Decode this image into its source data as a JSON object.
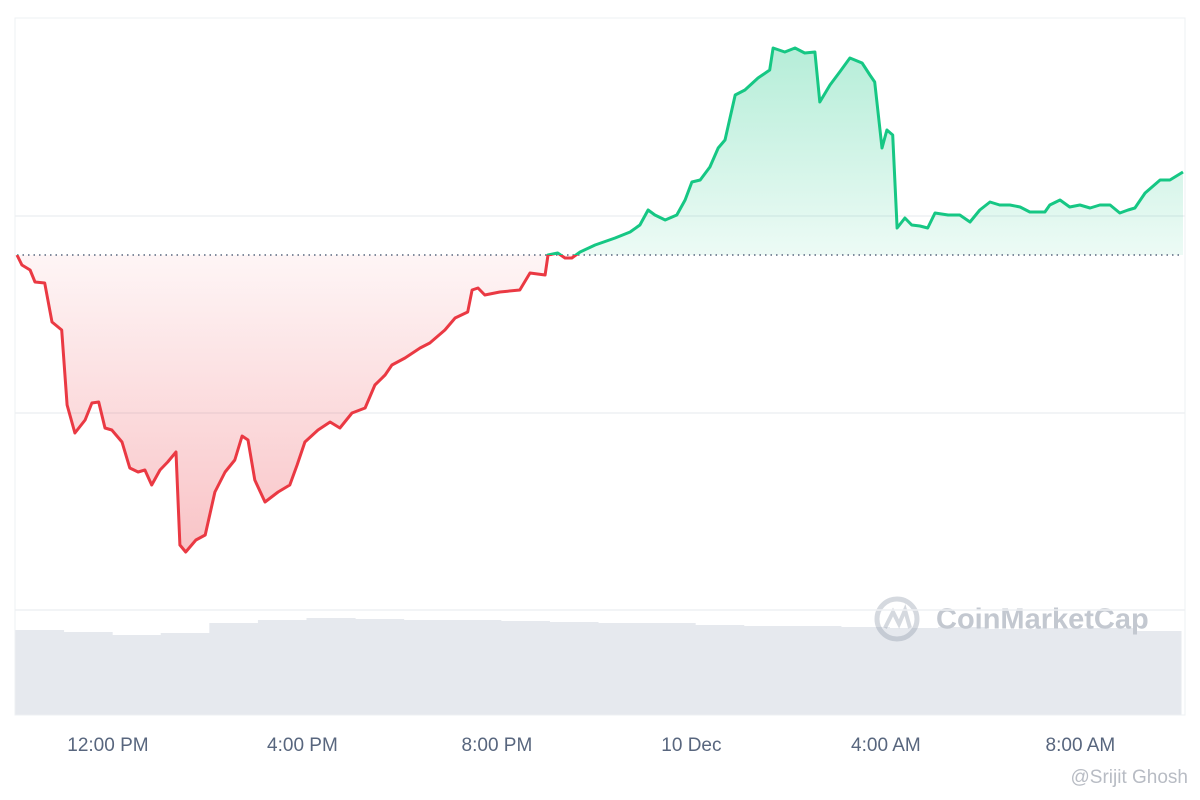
{
  "chart_data": {
    "type": "line",
    "x": [
      10.13,
      10.23,
      10.4,
      10.5,
      10.7,
      10.85,
      11.05,
      11.16,
      11.32,
      11.53,
      11.67,
      11.81,
      11.94,
      12.08,
      12.29,
      12.45,
      12.62,
      12.76,
      12.9,
      13.07,
      13.23,
      13.4,
      13.48,
      13.6,
      13.81,
      14.0,
      14.2,
      14.41,
      14.61,
      14.76,
      14.88,
      15.02,
      15.23,
      15.5,
      15.74,
      15.89,
      16.05,
      16.32,
      16.57,
      16.77,
      17.02,
      17.29,
      17.49,
      17.7,
      17.84,
      18.11,
      18.42,
      18.62,
      18.93,
      19.14,
      19.4,
      19.49,
      19.61,
      19.75,
      20.06,
      20.47,
      20.68,
      20.99,
      21.05,
      21.25,
      21.4,
      21.54,
      21.71,
      22.02,
      22.43,
      22.74,
      22.94,
      23.11,
      23.25,
      23.46,
      23.7,
      23.87,
      24.01,
      24.18,
      24.38,
      24.55,
      24.69,
      24.9,
      25.1,
      25.37,
      25.61,
      25.68,
      25.92,
      26.13,
      26.33,
      26.54,
      26.64,
      26.85,
      27.05,
      27.26,
      27.51,
      27.67,
      27.77,
      27.92,
      28.02,
      28.14,
      28.23,
      28.39,
      28.53,
      28.7,
      28.86,
      29.01,
      29.28,
      29.52,
      29.73,
      29.93,
      30.14,
      30.34,
      30.55,
      30.76,
      30.96,
      31.27,
      31.37,
      31.58,
      31.78,
      31.99,
      32.2,
      32.4,
      32.61,
      32.81,
      32.98,
      33.12,
      33.33,
      33.64,
      33.84,
      34.11
    ],
    "values": [
      355,
      345,
      340,
      328,
      327,
      288,
      280,
      205,
      177,
      190,
      207,
      208,
      182,
      180,
      168,
      142,
      138,
      140,
      125,
      140,
      148,
      158,
      65,
      58,
      70,
      75,
      118,
      138,
      150,
      174,
      170,
      130,
      108,
      118,
      125,
      145,
      168,
      180,
      188,
      182,
      197,
      202,
      225,
      235,
      245,
      252,
      262,
      267,
      280,
      292,
      298,
      320,
      322,
      315,
      318,
      320,
      337,
      335,
      355,
      357,
      352,
      352,
      358,
      365,
      372,
      378,
      385,
      400,
      395,
      390,
      395,
      410,
      428,
      430,
      443,
      462,
      470,
      515,
      520,
      532,
      540,
      562,
      558,
      562,
      557,
      558,
      508,
      525,
      538,
      552,
      547,
      535,
      528,
      462,
      480,
      475,
      382,
      392,
      385,
      384,
      382,
      397,
      395,
      395,
      388,
      400,
      408,
      405,
      405,
      403,
      398,
      398,
      405,
      410,
      403,
      405,
      402,
      405,
      405,
      397,
      400,
      402,
      417,
      430,
      430,
      438
    ],
    "reference": 355,
    "up_color": "#16c784",
    "down_color": "#ea3943",
    "xlim": [
      10.13,
      34.11
    ],
    "xticks": [
      {
        "value": 12,
        "label": "12:00 PM"
      },
      {
        "value": 16,
        "label": "4:00 PM"
      },
      {
        "value": 20,
        "label": "8:00 PM"
      },
      {
        "value": 24,
        "label": "10 Dec"
      },
      {
        "value": 28,
        "label": "4:00 AM"
      },
      {
        "value": 32,
        "label": "8:00 AM"
      }
    ],
    "ylim": [
      0,
      592
    ],
    "yticks": [
      0,
      197,
      394
    ],
    "grid": true,
    "volume": {
      "values": [
        85,
        83,
        80,
        82,
        92,
        95,
        97,
        96,
        95,
        95,
        94,
        93,
        92,
        92,
        90,
        89,
        89,
        88,
        87,
        88,
        86,
        87,
        87,
        84
      ],
      "ylim": [
        0,
        100
      ],
      "color": "#e6e9ee"
    },
    "watermark": "CoinMarketCap",
    "credit": "@Srijit Ghosh"
  }
}
